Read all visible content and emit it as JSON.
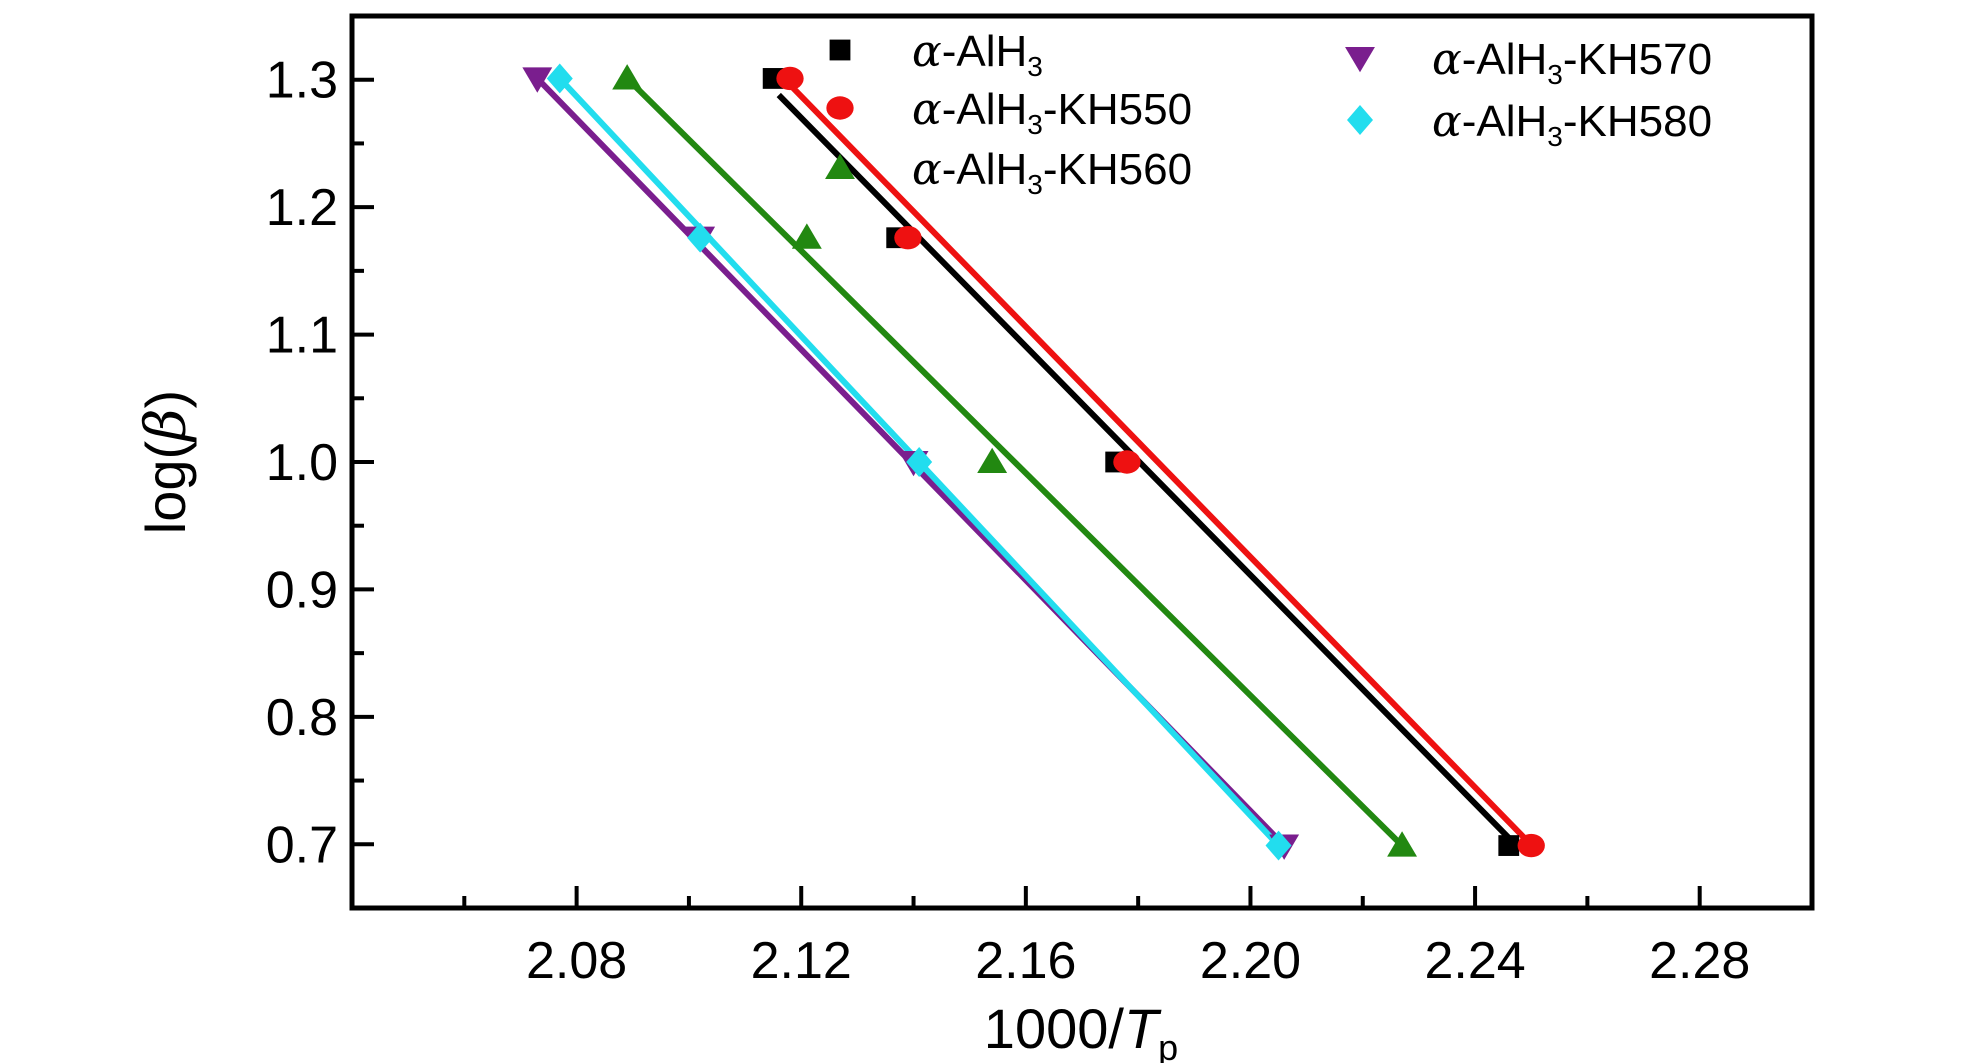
{
  "chart_data": {
    "type": "scatter",
    "xlabel": {
      "main": "1000/",
      "italic": "T",
      "sub": "p"
    },
    "ylabel": {
      "prefix": "log(",
      "greek": "β",
      "suffix": ")"
    },
    "xlim": [
      2.04,
      2.3
    ],
    "ylim": [
      0.65,
      1.35
    ],
    "x_ticks": [
      "2.08",
      "2.12",
      "2.16",
      "2.20",
      "2.24",
      "2.28"
    ],
    "y_ticks": [
      "0.7",
      "0.8",
      "0.9",
      "1.0",
      "1.1",
      "1.2",
      "1.3"
    ],
    "grid": false,
    "legend_position": "top",
    "series": [
      {
        "name_parts": [
          "α",
          "-AlH",
          "3",
          ""
        ],
        "marker": "square",
        "color": "#000000",
        "x": [
          2.115,
          2.137,
          2.176,
          2.246
        ],
        "y": [
          1.301,
          1.176,
          1.0,
          0.699
        ],
        "fit": {
          "x": [
            2.116,
            2.246
          ],
          "y": [
            1.288,
            0.705
          ]
        }
      },
      {
        "name_parts": [
          "α",
          "-AlH",
          "3",
          "-KH550"
        ],
        "marker": "circle",
        "color": "#ee1111",
        "x": [
          2.118,
          2.139,
          2.178,
          2.25
        ],
        "y": [
          1.301,
          1.176,
          1.0,
          0.699
        ],
        "fit": {
          "x": [
            2.118,
            2.249
          ],
          "y": [
            1.296,
            0.704
          ]
        }
      },
      {
        "name_parts": [
          "α",
          "-AlH",
          "3",
          "-KH560"
        ],
        "marker": "triangle-up",
        "color": "#228811",
        "x": [
          2.089,
          2.121,
          2.154,
          2.227
        ],
        "y": [
          1.301,
          1.176,
          1.0,
          0.699
        ],
        "fit": {
          "x": [
            2.089,
            2.227
          ],
          "y": [
            1.301,
            0.699
          ]
        }
      },
      {
        "name_parts": [
          "α",
          "-AlH",
          "3",
          "-KH570"
        ],
        "marker": "triangle-down",
        "color": "#7a1e8e",
        "x": [
          2.073,
          2.102,
          2.14,
          2.206
        ],
        "y": [
          1.301,
          1.176,
          1.0,
          0.699
        ],
        "fit": {
          "x": [
            2.073,
            2.206
          ],
          "y": [
            1.301,
            0.699
          ]
        }
      },
      {
        "name_parts": [
          "α",
          "-AlH",
          "3",
          "-KH580"
        ],
        "marker": "diamond",
        "color": "#22ddee",
        "x": [
          2.077,
          2.102,
          2.141,
          2.205
        ],
        "y": [
          1.301,
          1.176,
          1.0,
          0.699
        ],
        "fit": {
          "x": [
            2.077,
            2.205
          ],
          "y": [
            1.301,
            0.699
          ]
        }
      }
    ]
  }
}
